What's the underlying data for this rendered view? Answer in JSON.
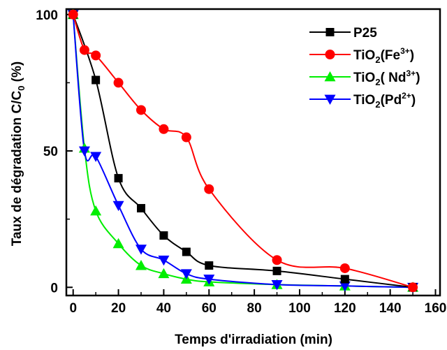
{
  "chart_data": {
    "type": "line",
    "xlabel": "Temps d'irradiation (min)",
    "ylabel_main": "Taux de dégradation C/C",
    "ylabel_sub": "0",
    "ylabel_unit": " (%)",
    "xlim": [
      -3,
      162
    ],
    "ylim": [
      -3,
      102
    ],
    "xticks": [
      0,
      20,
      40,
      60,
      80,
      100,
      120,
      140,
      160
    ],
    "yticks": [
      0,
      50,
      100
    ],
    "legend_position": "top-right",
    "series": [
      {
        "name": "P25",
        "legend": {
          "base": "P25",
          "sub": "",
          "sup": ""
        },
        "color": "#000000",
        "marker": "square",
        "x": [
          0,
          10,
          20,
          30,
          40,
          50,
          60,
          90,
          120,
          150
        ],
        "y": [
          100,
          76,
          40,
          29,
          19,
          13,
          8,
          6,
          3,
          0
        ]
      },
      {
        "name": "TiO2(Fe3+)",
        "legend": {
          "base": "TiO",
          "sub": "2",
          "rest": "(Fe",
          "sup": "3+",
          "end": ")"
        },
        "color": "#ff0000",
        "marker": "circle",
        "x": [
          0,
          5,
          10,
          20,
          30,
          40,
          50,
          60,
          90,
          120,
          150
        ],
        "y": [
          100,
          87,
          85,
          75,
          65,
          58,
          55,
          36,
          10,
          7,
          0
        ]
      },
      {
        "name": "TiO2( Nd3+)",
        "legend": {
          "base": "TiO",
          "sub": "2",
          "rest": "( Nd",
          "sup": "3+",
          "end": ")"
        },
        "color": "#00ee00",
        "marker": "triangle-up",
        "x": [
          0,
          5,
          10,
          20,
          30,
          40,
          50,
          60,
          90,
          120,
          150
        ],
        "y": [
          100,
          51,
          28,
          16,
          8,
          5,
          3,
          2,
          1,
          0.5,
          0
        ]
      },
      {
        "name": "TiO2(Pd2+)",
        "legend": {
          "base": "TiO",
          "sub": "2",
          "rest": "(Pd",
          "sup": "2+",
          "end": ")"
        },
        "color": "#0000ff",
        "marker": "triangle-down",
        "x": [
          0,
          5,
          10,
          20,
          30,
          40,
          50,
          60,
          90,
          120,
          150
        ],
        "y": [
          100,
          50,
          48,
          30,
          14,
          10,
          5,
          3,
          1,
          0.5,
          0
        ]
      }
    ]
  }
}
